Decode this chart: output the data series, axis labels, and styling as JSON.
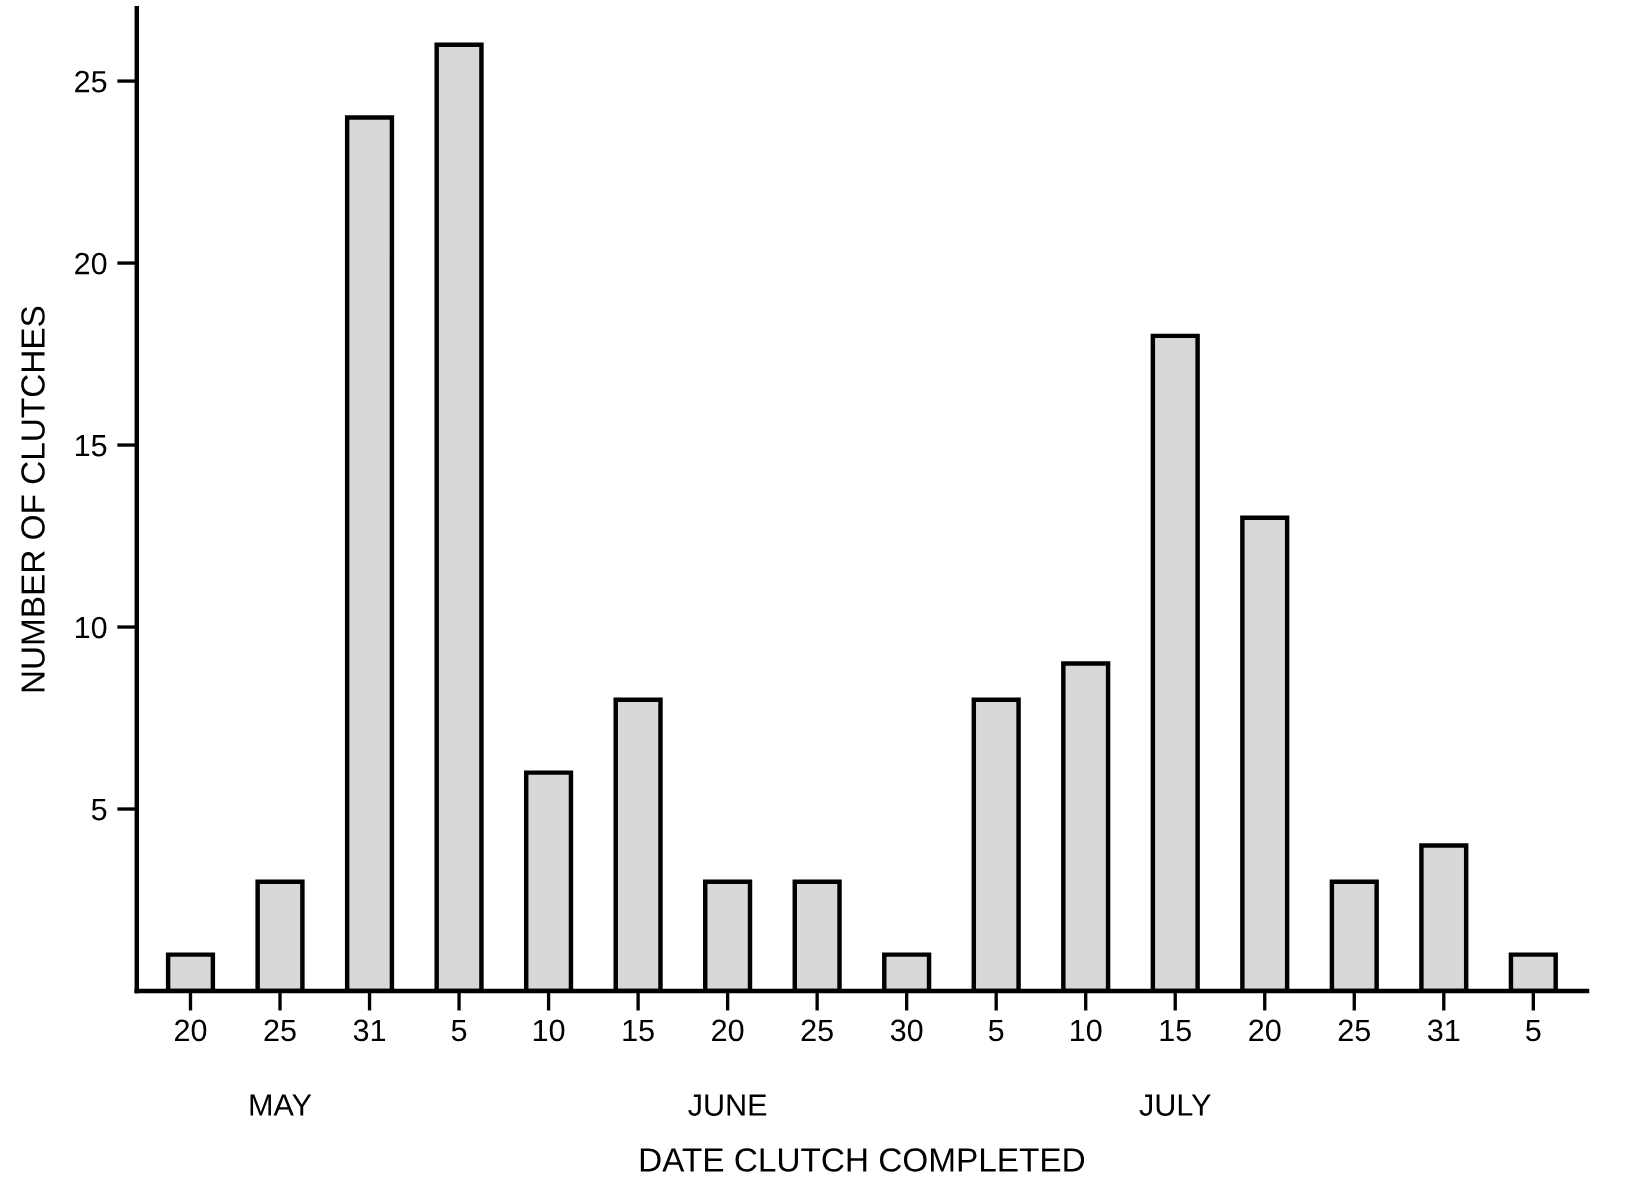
{
  "chart_data": {
    "type": "bar",
    "xlabel": "DATE CLUTCH COMPLETED",
    "ylabel": "NUMBER OF CLUTCHES",
    "categories": [
      "20",
      "25",
      "31",
      "5",
      "10",
      "15",
      "20",
      "25",
      "30",
      "5",
      "10",
      "15",
      "20",
      "25",
      "31",
      "5"
    ],
    "values": [
      1,
      3,
      24,
      26,
      6,
      8,
      3,
      3,
      1,
      8,
      9,
      18,
      13,
      3,
      4,
      1
    ],
    "color": "#d8d8d8",
    "ylim": [
      0,
      27
    ],
    "yticks": [
      5,
      10,
      15,
      20,
      25
    ],
    "grid": false,
    "annotations": [
      "MAY",
      "JUNE",
      "JULY"
    ]
  }
}
